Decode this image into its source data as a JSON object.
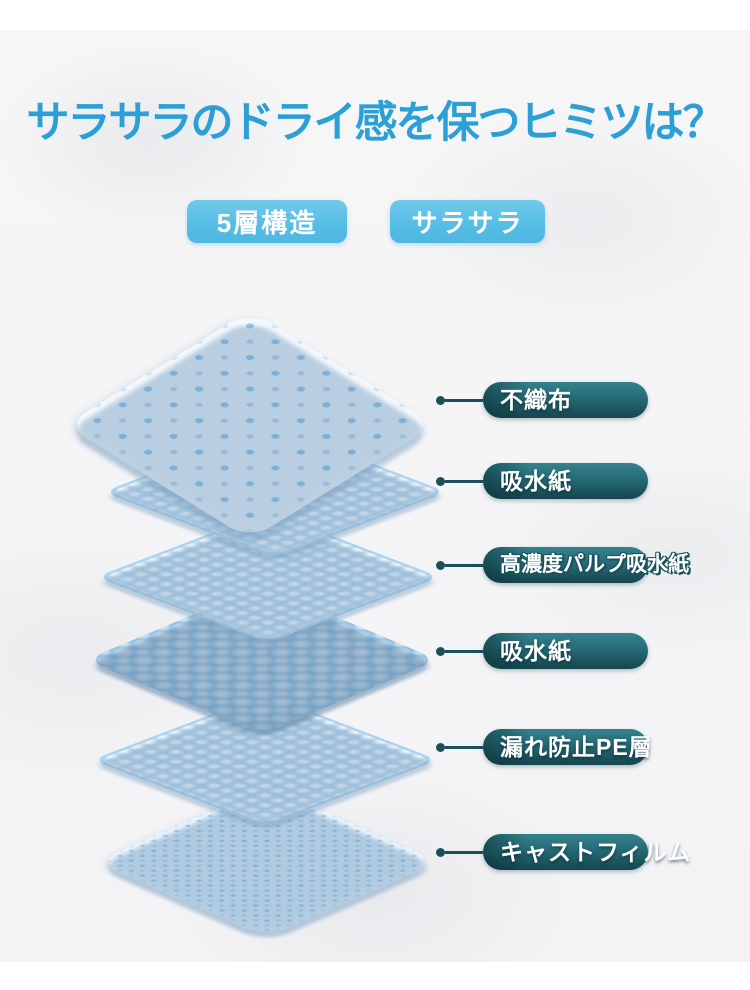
{
  "header": {
    "title": "サラサラのドライ感を保つヒミツは？"
  },
  "badges": [
    {
      "label": "5層構造"
    },
    {
      "label": "サラサラ"
    }
  ],
  "callouts": [
    {
      "label": "不織布"
    },
    {
      "label": "吸水紙"
    },
    {
      "label": "高濃度パルプ吸水紙"
    },
    {
      "label": "吸水紙"
    },
    {
      "label": "漏れ防止PE層"
    },
    {
      "label": "キャストフィルム"
    }
  ],
  "layers": [
    {
      "name": "nonwoven-top-sheet"
    },
    {
      "name": "absorbent-paper-upper"
    },
    {
      "name": "high-density-pulp-absorbent-paper"
    },
    {
      "name": "absorbent-paper-bead-core"
    },
    {
      "name": "leakproof-pe-layer"
    },
    {
      "name": "cast-film-backsheet"
    }
  ],
  "colors": {
    "title_blue": "#2D9FD7",
    "badge_blue": "#5CC0E6",
    "pill_teal_light": "#35828D",
    "pill_teal_mid": "#256B76",
    "pill_teal_dark": "#16464F",
    "connector_teal": "#1C4F5A",
    "layer_blue_light": "#D8EAF7",
    "layer_blue_mid": "#8CC2E6",
    "background": "#F5F5F6"
  }
}
